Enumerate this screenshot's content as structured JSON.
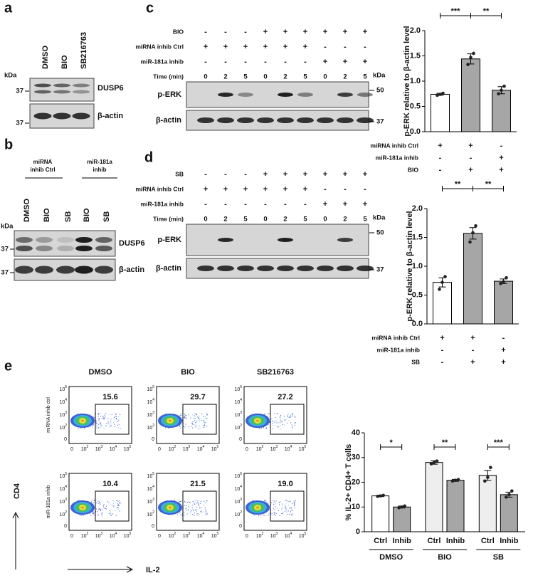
{
  "panel_a": {
    "label": "a",
    "lanes": [
      "DMSO",
      "BIO",
      "SB216763"
    ],
    "kda": "kDa",
    "blots": [
      {
        "name": "DUSP6",
        "marker": "37"
      },
      {
        "name": "β-actin",
        "marker": "37"
      }
    ]
  },
  "panel_b": {
    "label": "b",
    "groups": [
      [
        "miRNA",
        "inhib Ctrl"
      ],
      [
        "miR-181a",
        "inhib"
      ]
    ],
    "lanes": [
      "DMSO",
      "BIO",
      "SB",
      "BIO",
      "SB"
    ],
    "kda": "kDa",
    "blots": [
      {
        "name": "DUSP6",
        "marker": "37"
      },
      {
        "name": "β-actin",
        "marker": "37"
      }
    ]
  },
  "panel_c": {
    "label": "c",
    "rows": [
      {
        "label": "BIO",
        "marks": [
          "-",
          "-",
          "-",
          "+",
          "+",
          "+",
          "+",
          "+",
          "+"
        ]
      },
      {
        "label": "miRNA inhib Ctrl",
        "marks": [
          "+",
          "+",
          "+",
          "+",
          "+",
          "+",
          "-",
          "-",
          "-"
        ]
      },
      {
        "label": "miR-181a inhib",
        "marks": [
          "-",
          "-",
          "-",
          "-",
          "-",
          "-",
          "+",
          "+",
          "+"
        ]
      }
    ],
    "time_label": "Time (min)",
    "times": [
      0,
      2,
      5,
      0,
      2,
      5,
      0,
      2,
      5
    ],
    "kda": "kDa",
    "blots": [
      {
        "name": "p-ERK",
        "marker": "50"
      },
      {
        "name": "β-actin",
        "marker": "37"
      }
    ]
  },
  "panel_d": {
    "label": "d",
    "rows": [
      {
        "label": "SB",
        "marks": [
          "-",
          "-",
          "-",
          "+",
          "+",
          "+",
          "+",
          "+",
          "+"
        ]
      },
      {
        "label": "miRNA inhib Ctrl",
        "marks": [
          "+",
          "+",
          "+",
          "+",
          "+",
          "+",
          "-",
          "-",
          "-"
        ]
      },
      {
        "label": "miR-181a inhib",
        "marks": [
          "-",
          "-",
          "-",
          "-",
          "-",
          "-",
          "+",
          "+",
          "+"
        ]
      }
    ],
    "time_label": "Time (min)",
    "times": [
      0,
      2,
      5,
      0,
      2,
      5,
      0,
      2,
      5
    ],
    "kda": "kDa",
    "blots": [
      {
        "name": "p-ERK",
        "marker": "50"
      },
      {
        "name": "β-actin",
        "marker": "37"
      }
    ]
  },
  "panel_e": {
    "label": "e",
    "columns": [
      "DMSO",
      "BIO",
      "SB216763"
    ],
    "rows": [
      "miRNA inhib ctrl",
      "miR-181a inhib"
    ],
    "gates": [
      [
        "15.6",
        "29.7",
        "27.2"
      ],
      [
        "10.4",
        "21.5",
        "19.0"
      ]
    ],
    "y_ticks": [
      {
        "base": "10",
        "exp": "5"
      },
      {
        "base": "10",
        "exp": "4"
      },
      {
        "base": "10",
        "exp": "3"
      },
      {
        "base": "10",
        "exp": "2"
      },
      "0"
    ],
    "x_ticks": [
      "0",
      {
        "base": "10",
        "exp": "2"
      },
      {
        "base": "10",
        "exp": "3"
      },
      {
        "base": "10",
        "exp": "4"
      },
      {
        "base": "10",
        "exp": "5"
      }
    ],
    "y_axis_label": "CD4",
    "x_axis_label": "IL-2"
  },
  "chart_data": [
    {
      "type": "bar",
      "y_label": "p-ERK relative to β-actin level",
      "values": [
        0.74,
        1.44,
        0.82
      ],
      "errors": [
        0.02,
        0.1,
        0.07
      ],
      "points": [
        [
          0.72,
          0.74,
          0.76
        ],
        [
          1.33,
          1.47,
          1.55
        ],
        [
          0.75,
          0.82,
          0.9
        ]
      ],
      "colors": [
        "#ffffff",
        "#a6a6a6",
        "#a6a6a6"
      ],
      "ylim": [
        0,
        2
      ],
      "yticks": [
        {
          "value": 0,
          "label": "0.0"
        },
        0.5,
        {
          "value": 1,
          "label": "1.0"
        },
        1.5,
        {
          "value": 2,
          "label": "2.0"
        }
      ],
      "significance": [
        "***",
        "**"
      ],
      "conditions": [
        {
          "label": "miRNA inhib Ctrl",
          "marks": [
            "+",
            "+",
            "-"
          ]
        },
        {
          "label": "miR-181a inhib",
          "marks": [
            "-",
            "-",
            "+"
          ]
        },
        {
          "label": "BIO",
          "marks": [
            "-",
            "+",
            "+"
          ]
        }
      ]
    },
    {
      "type": "bar",
      "y_label": "p-ERK relative to β-actin level",
      "values": [
        0.72,
        1.57,
        0.74
      ],
      "errors": [
        0.08,
        0.1,
        0.04
      ],
      "points": [
        [
          0.6,
          0.72,
          0.82
        ],
        [
          1.42,
          1.58,
          1.7
        ],
        [
          0.7,
          0.73,
          0.8
        ]
      ],
      "colors": [
        "#ffffff",
        "#a6a6a6",
        "#a6a6a6"
      ],
      "ylim": [
        0,
        2
      ],
      "yticks": [
        {
          "value": 0,
          "label": "0.0"
        },
        0.5,
        {
          "value": 1,
          "label": "1.0"
        },
        1.5,
        {
          "value": 2,
          "label": "2.0"
        }
      ],
      "significance": [
        "**",
        "**"
      ],
      "conditions": [
        {
          "label": "miRNA inhib Ctrl",
          "marks": [
            "+",
            "+",
            "-"
          ]
        },
        {
          "label": "miR-181a inhib",
          "marks": [
            "-",
            "-",
            "+"
          ]
        },
        {
          "label": "SB",
          "marks": [
            "-",
            "+",
            "+"
          ]
        }
      ]
    },
    {
      "type": "bar",
      "y_label": "% IL-2+ CD4+ T cells",
      "categories": [
        "DMSO",
        "BIO",
        "SB"
      ],
      "series": [
        {
          "name": "Ctrl",
          "color": "#ffffff",
          "colors": [
            "#ffffff",
            "#eeeeee",
            "#eeeeee"
          ],
          "values": [
            14.5,
            28,
            22.8
          ],
          "errors": [
            0.3,
            0.7,
            2
          ],
          "points": [
            [
              14.3,
              14.5,
              14.7
            ],
            [
              27.5,
              28,
              28.6
            ],
            [
              20.5,
              22,
              26
            ]
          ]
        },
        {
          "name": "Inhib",
          "color": "#a6a6a6",
          "values": [
            10,
            20.8,
            15
          ],
          "errors": [
            0.4,
            0.4,
            1
          ],
          "points": [
            [
              9.7,
              10,
              10.4
            ],
            [
              20.5,
              20.8,
              21.1
            ],
            [
              14,
              15,
              16.5
            ]
          ]
        }
      ],
      "ylim": [
        0,
        40
      ],
      "yticks": [
        0,
        10,
        20,
        30,
        40
      ],
      "significance": [
        "*",
        "**",
        "***"
      ]
    }
  ]
}
